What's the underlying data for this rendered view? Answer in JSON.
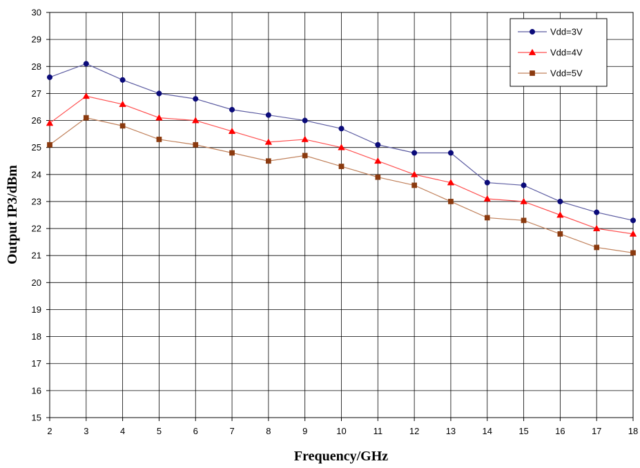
{
  "chart_data": {
    "type": "line",
    "xlabel": "Frequency/GHz",
    "ylabel": "Output IP3/dBm",
    "x": [
      2,
      3,
      4,
      5,
      6,
      7,
      8,
      9,
      10,
      11,
      12,
      13,
      14,
      15,
      16,
      17,
      18
    ],
    "xlim": [
      2,
      18
    ],
    "ylim": [
      15,
      30
    ],
    "x_ticks": [
      "2",
      "3",
      "4",
      "5",
      "6",
      "7",
      "8",
      "9",
      "10",
      "11",
      "12",
      "13",
      "14",
      "15",
      "16",
      "17",
      "18"
    ],
    "y_ticks": [
      "15",
      "16",
      "17",
      "18",
      "19",
      "20",
      "21",
      "22",
      "23",
      "24",
      "25",
      "26",
      "27",
      "28",
      "29",
      "30"
    ],
    "grid": true,
    "legend_position": "top-right",
    "series": [
      {
        "name": "Vdd=3V",
        "marker": "circle",
        "line_color": "#5a5aa0",
        "marker_color": "#0b0b7a",
        "values": [
          27.6,
          28.1,
          27.5,
          27.0,
          26.8,
          26.4,
          26.2,
          26.0,
          25.7,
          25.1,
          24.8,
          24.8,
          23.7,
          23.6,
          23.0,
          22.6,
          22.3
        ]
      },
      {
        "name": "Vdd=4V",
        "marker": "triangle",
        "line_color": "#ff4f4f",
        "marker_color": "#ff0000",
        "values": [
          25.9,
          26.9,
          26.6,
          26.1,
          26.0,
          25.6,
          25.2,
          25.3,
          25.0,
          24.5,
          24.0,
          23.7,
          23.1,
          23.0,
          22.5,
          22.0,
          21.8
        ]
      },
      {
        "name": "Vdd=5V",
        "marker": "square",
        "line_color": "#c0805a",
        "marker_color": "#8b3a0f",
        "values": [
          25.1,
          26.1,
          25.8,
          25.3,
          25.1,
          24.8,
          24.5,
          24.7,
          24.3,
          23.9,
          23.6,
          23.0,
          22.4,
          22.3,
          21.8,
          21.3,
          21.1
        ]
      }
    ]
  }
}
